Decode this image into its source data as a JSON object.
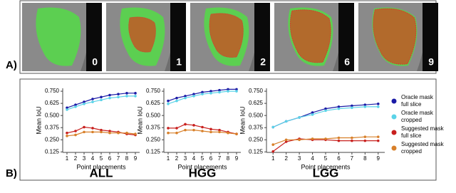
{
  "panel_a": {
    "label": "A)",
    "images": [
      {
        "label": "0"
      },
      {
        "label": "1"
      },
      {
        "label": "2"
      },
      {
        "label": "6"
      },
      {
        "label": "9"
      }
    ]
  },
  "panel_b_label": "B)",
  "legend": [
    {
      "name": "Oracle mask full slice",
      "color": "#1a1aa6"
    },
    {
      "name": "Oracle mask cropped",
      "color": "#5bd3e8"
    },
    {
      "name": "Suggested mask full slice",
      "color": "#c8201e"
    },
    {
      "name": "Suggested mask cropped",
      "color": "#d8802a"
    }
  ],
  "chart_data": [
    {
      "type": "line",
      "title": "ALL",
      "x_label": "Point placements",
      "y_label": "Mean IoU",
      "x": [
        1,
        2,
        3,
        4,
        5,
        6,
        7,
        8,
        9
      ],
      "xlim": [
        0.5,
        9.5
      ],
      "xticks": [
        1,
        2,
        3,
        4,
        5,
        6,
        7,
        8,
        9
      ],
      "ylim": [
        0.12,
        0.78
      ],
      "yticks": [
        0.125,
        {
          "value": 0.25,
          "label": "0.250"
        },
        0.375,
        {
          "value": 0.5,
          "label": "0.500"
        },
        0.625,
        {
          "value": 0.75,
          "label": "0.750"
        }
      ],
      "series": [
        {
          "values": [
            0.58,
            0.61,
            0.64,
            0.67,
            0.69,
            0.71,
            0.72,
            0.73,
            0.73
          ]
        },
        {
          "values": [
            0.56,
            0.59,
            0.62,
            0.64,
            0.66,
            0.68,
            0.69,
            0.7,
            0.7
          ]
        },
        {
          "values": [
            0.32,
            0.34,
            0.38,
            0.37,
            0.35,
            0.34,
            0.33,
            0.31,
            0.3
          ]
        },
        {
          "values": [
            0.29,
            0.3,
            0.33,
            0.33,
            0.33,
            0.32,
            0.32,
            0.32,
            0.31
          ]
        }
      ]
    },
    {
      "type": "line",
      "title": "HGG",
      "x_label": "Point placements",
      "y_label": "Mean IoU",
      "x": [
        1,
        2,
        3,
        4,
        5,
        6,
        7,
        8,
        9
      ],
      "xlim": [
        0.5,
        9.5
      ],
      "xticks": [
        1,
        2,
        3,
        4,
        5,
        6,
        7,
        8,
        9
      ],
      "ylim": [
        0.12,
        0.78
      ],
      "yticks": [
        0.125,
        {
          "value": 0.25,
          "label": "0.250"
        },
        0.375,
        {
          "value": 0.5,
          "label": "0.500"
        },
        0.625,
        {
          "value": 0.75,
          "label": "0.750"
        }
      ],
      "series": [
        {
          "values": [
            0.65,
            0.68,
            0.7,
            0.72,
            0.74,
            0.75,
            0.76,
            0.77,
            0.77
          ]
        },
        {
          "values": [
            0.62,
            0.65,
            0.68,
            0.7,
            0.72,
            0.73,
            0.74,
            0.75,
            0.75
          ]
        },
        {
          "values": [
            0.37,
            0.37,
            0.41,
            0.4,
            0.38,
            0.36,
            0.35,
            0.33,
            0.31
          ]
        },
        {
          "values": [
            0.32,
            0.32,
            0.35,
            0.35,
            0.34,
            0.33,
            0.33,
            0.32,
            0.31
          ]
        }
      ]
    },
    {
      "type": "line",
      "title": "LGG",
      "x_label": "Point placements",
      "y_label": "Mean IoU",
      "x": [
        1,
        2,
        3,
        4,
        5,
        6,
        7,
        8,
        9
      ],
      "xlim": [
        0.5,
        9.5
      ],
      "xticks": [
        1,
        2,
        3,
        4,
        5,
        6,
        7,
        8,
        9
      ],
      "ylim": [
        0.12,
        0.78
      ],
      "yticks": [
        0.125,
        {
          "value": 0.25,
          "label": "0.250"
        },
        0.375,
        {
          "value": 0.5,
          "label": "0.500"
        },
        0.625,
        {
          "value": 0.75,
          "label": "0.750"
        }
      ],
      "series": [
        {
          "values": [
            0.38,
            0.44,
            0.48,
            0.53,
            0.57,
            0.59,
            0.6,
            0.61,
            0.62
          ]
        },
        {
          "values": [
            0.38,
            0.44,
            0.48,
            0.51,
            0.55,
            0.57,
            0.58,
            0.59,
            0.59
          ]
        },
        {
          "values": [
            0.13,
            0.23,
            0.26,
            0.25,
            0.25,
            0.24,
            0.24,
            0.24,
            0.24
          ]
        },
        {
          "values": [
            0.2,
            0.25,
            0.25,
            0.26,
            0.26,
            0.27,
            0.27,
            0.28,
            0.28
          ]
        }
      ]
    }
  ]
}
